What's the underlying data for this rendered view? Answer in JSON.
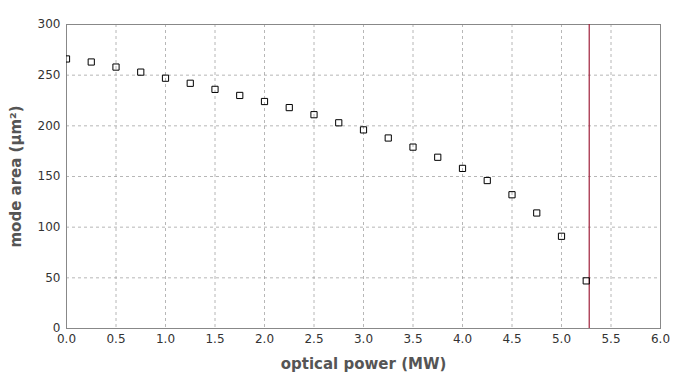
{
  "chart_data": {
    "type": "scatter",
    "x_label": "optical power (MW)",
    "y_label": "mode area (µm²)",
    "x": [
      0,
      0.25,
      0.5,
      0.75,
      1,
      1.25,
      1.5,
      1.75,
      2,
      2.25,
      2.5,
      2.75,
      3,
      3.25,
      3.5,
      3.75,
      4,
      4.25,
      4.5,
      4.75,
      5,
      5.25
    ],
    "values": [
      266,
      263,
      258,
      253,
      247,
      242,
      236,
      230,
      224,
      218,
      211,
      203,
      196,
      188,
      179,
      169,
      158,
      146,
      132,
      114,
      91,
      47
    ],
    "color": "#000000",
    "marker": "square",
    "reference_line": {
      "x": 5.28,
      "color": "#a0213a"
    },
    "xlim": [
      0,
      6
    ],
    "xticks": [
      0,
      0.5,
      1,
      1.5,
      2,
      2.5,
      3,
      3.5,
      4,
      4.5,
      5,
      5.5,
      6
    ],
    "ylim": [
      0,
      300
    ],
    "yticks": [
      0,
      50,
      100,
      150,
      200,
      250,
      300
    ],
    "grid": true
  }
}
